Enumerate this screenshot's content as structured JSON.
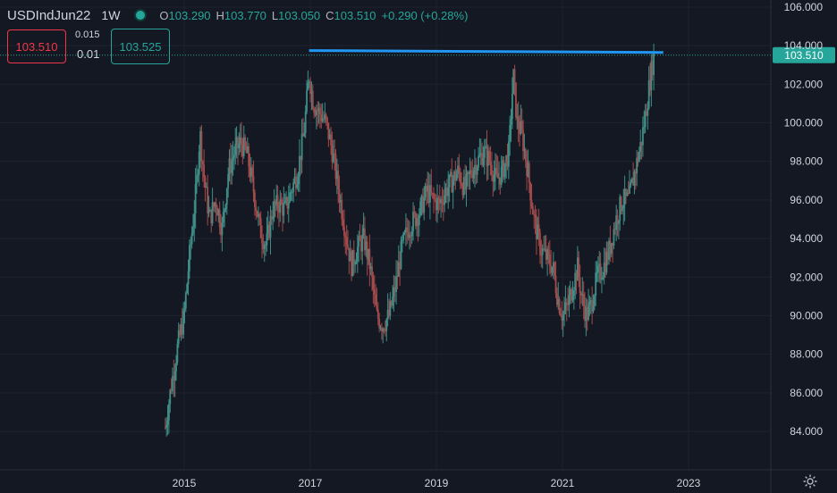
{
  "header": {
    "symbol": "USDIndJun22",
    "timeframe": "1W",
    "open_label": "O",
    "open": "103.290",
    "high_label": "H",
    "high": "103.770",
    "low_label": "L",
    "low": "103.050",
    "close_label": "C",
    "close": "103.510",
    "change": "+0.290 (+0.28%)"
  },
  "trade": {
    "sell_price": "103.510",
    "buy_price": "103.525",
    "spread": "0.015",
    "lot": "0.01"
  },
  "colors": {
    "background": "#141823",
    "up": "#26a69a",
    "down": "#ef5350",
    "trendline": "#2196f3",
    "grid": "#1e2230",
    "text": "#d1d4dc"
  },
  "chart_data": {
    "type": "candlestick",
    "x_ticks": [
      "2015",
      "2017",
      "2019",
      "2021",
      "2023"
    ],
    "y_ticks": [
      "84.000",
      "86.000",
      "88.000",
      "90.000",
      "92.000",
      "94.000",
      "96.000",
      "98.000",
      "100.000",
      "102.000",
      "104.000",
      "106.000"
    ],
    "ylim": [
      82.0,
      106.0
    ],
    "xlim": [
      2014.0,
      2024.2
    ],
    "last_price": "103.510",
    "price_line_value": 103.51,
    "trendline": {
      "x1": 2016.98,
      "y1": 103.75,
      "x2": 2022.6,
      "y2": 103.65
    },
    "path_points": [
      [
        2014.7,
        84.2
      ],
      [
        2014.8,
        86.5
      ],
      [
        2014.9,
        88.5
      ],
      [
        2015.0,
        90.0
      ],
      [
        2015.08,
        93.0
      ],
      [
        2015.15,
        95.2
      ],
      [
        2015.2,
        97.0
      ],
      [
        2015.25,
        99.5
      ],
      [
        2015.32,
        97.0
      ],
      [
        2015.4,
        95.0
      ],
      [
        2015.5,
        96.0
      ],
      [
        2015.6,
        94.5
      ],
      [
        2015.7,
        97.5
      ],
      [
        2015.8,
        98.5
      ],
      [
        2015.9,
        99.0
      ],
      [
        2016.0,
        98.3
      ],
      [
        2016.1,
        96.5
      ],
      [
        2016.2,
        94.5
      ],
      [
        2016.3,
        93.6
      ],
      [
        2016.4,
        95.5
      ],
      [
        2016.5,
        95.8
      ],
      [
        2016.6,
        95.5
      ],
      [
        2016.7,
        96.5
      ],
      [
        2016.8,
        97.5
      ],
      [
        2016.9,
        99.5
      ],
      [
        2016.98,
        102.5
      ],
      [
        2017.05,
        101.0
      ],
      [
        2017.15,
        100.5
      ],
      [
        2017.25,
        100.0
      ],
      [
        2017.35,
        98.5
      ],
      [
        2017.45,
        96.5
      ],
      [
        2017.55,
        94.5
      ],
      [
        2017.65,
        92.6
      ],
      [
        2017.75,
        93.5
      ],
      [
        2017.85,
        94.0
      ],
      [
        2017.95,
        92.5
      ],
      [
        2018.05,
        90.0
      ],
      [
        2018.15,
        89.5
      ],
      [
        2018.25,
        90.0
      ],
      [
        2018.35,
        91.5
      ],
      [
        2018.45,
        93.5
      ],
      [
        2018.55,
        94.5
      ],
      [
        2018.65,
        95.0
      ],
      [
        2018.75,
        95.5
      ],
      [
        2018.85,
        96.5
      ],
      [
        2018.95,
        96.0
      ],
      [
        2019.05,
        95.8
      ],
      [
        2019.15,
        96.5
      ],
      [
        2019.25,
        97.0
      ],
      [
        2019.35,
        97.5
      ],
      [
        2019.45,
        96.5
      ],
      [
        2019.55,
        97.5
      ],
      [
        2019.65,
        98.0
      ],
      [
        2019.75,
        98.5
      ],
      [
        2019.85,
        98.0
      ],
      [
        2019.95,
        97.0
      ],
      [
        2020.05,
        97.5
      ],
      [
        2020.15,
        98.5
      ],
      [
        2020.22,
        102.5
      ],
      [
        2020.28,
        100.0
      ],
      [
        2020.35,
        99.5
      ],
      [
        2020.45,
        97.5
      ],
      [
        2020.55,
        95.0
      ],
      [
        2020.65,
        93.5
      ],
      [
        2020.75,
        93.0
      ],
      [
        2020.85,
        92.5
      ],
      [
        2020.92,
        91.0
      ],
      [
        2021.0,
        90.0
      ],
      [
        2021.08,
        90.5
      ],
      [
        2021.16,
        91.5
      ],
      [
        2021.24,
        92.5
      ],
      [
        2021.3,
        91.0
      ],
      [
        2021.38,
        90.0
      ],
      [
        2021.45,
        90.5
      ],
      [
        2021.55,
        92.0
      ],
      [
        2021.65,
        92.5
      ],
      [
        2021.75,
        93.5
      ],
      [
        2021.85,
        95.0
      ],
      [
        2021.95,
        96.0
      ],
      [
        2022.05,
        96.0
      ],
      [
        2022.15,
        97.5
      ],
      [
        2022.25,
        99.0
      ],
      [
        2022.32,
        100.5
      ],
      [
        2022.4,
        102.5
      ],
      [
        2022.45,
        103.5
      ]
    ]
  }
}
